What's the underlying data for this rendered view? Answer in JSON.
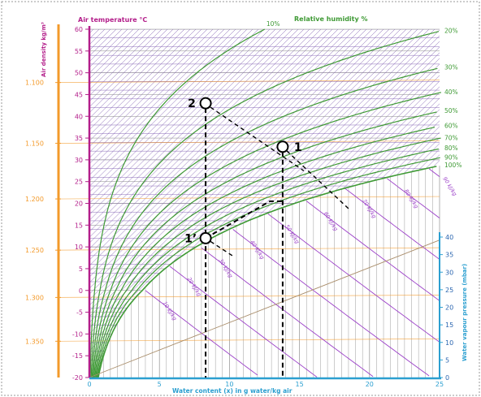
{
  "chart_data": {
    "type": "psychrometric",
    "title": "",
    "temperature_axis": {
      "label": "Air temperature °C",
      "range": [
        -20,
        60
      ],
      "ticks": [
        "60",
        "55",
        "50",
        "45",
        "40",
        "35",
        "30",
        "25",
        "20",
        "15",
        "10",
        "5",
        "0",
        "-5",
        "-10",
        "-15",
        "-20"
      ]
    },
    "density_axis": {
      "label": "Air density kg/m³",
      "ticks": [
        "1.100",
        "1.150",
        "1.200",
        "1.250",
        "1.300",
        "1.350"
      ]
    },
    "water_content_axis": {
      "label": "Water content (x) in g water/kg air",
      "range": [
        0,
        25
      ],
      "ticks": [
        "0",
        "5",
        "10",
        "15",
        "20",
        "25"
      ]
    },
    "vapour_pressure_axis": {
      "label": "Water vapour pressure (mbar)",
      "range": [
        0,
        40
      ],
      "ticks": [
        "0",
        "5",
        "10",
        "15",
        "20",
        "25",
        "30",
        "35",
        "40"
      ]
    },
    "relative_humidity": {
      "label": "Relative humidity %",
      "curves": [
        {
          "value": 10,
          "label": "10%"
        },
        {
          "value": 20,
          "label": "20%"
        },
        {
          "value": 30,
          "label": "30%"
        },
        {
          "value": 40,
          "label": "40%"
        },
        {
          "value": 50,
          "label": "50%"
        },
        {
          "value": 60,
          "label": "60%"
        },
        {
          "value": 70,
          "label": "70%"
        },
        {
          "value": 80,
          "label": "80%"
        },
        {
          "value": 90,
          "label": "90%"
        },
        {
          "value": 100,
          "label": "100%"
        }
      ]
    },
    "enthalpy_lines": [
      {
        "value": 10,
        "label": "10 kJ/kg"
      },
      {
        "value": 20,
        "label": "20 kJ/kg"
      },
      {
        "value": 30,
        "label": "30 kJ/kg"
      },
      {
        "value": 40,
        "label": "40 kJ/kg"
      },
      {
        "value": 50,
        "label": "50 kJ/kg"
      },
      {
        "value": 60,
        "label": "60 kJ/kg"
      },
      {
        "value": 70,
        "label": "70 kJ/kg"
      },
      {
        "value": 80,
        "label": "80 kJ/kg"
      },
      {
        "value": 90,
        "label": "90 kJ/kg"
      }
    ],
    "points": [
      {
        "label": "1",
        "x": 13.8,
        "t": 33
      },
      {
        "label": "1’",
        "x": 8.3,
        "t": 12
      },
      {
        "label": "2",
        "x": 8.3,
        "t": 43
      }
    ],
    "colors": {
      "temperature": "#b31e8a",
      "density": "#f39a2a",
      "humidity": "#3f9a35",
      "enthalpy": "#9b3fc8",
      "water": "#2b9fd0",
      "grid": "#c0c0c0",
      "hatch": "#7d5ab0"
    }
  }
}
